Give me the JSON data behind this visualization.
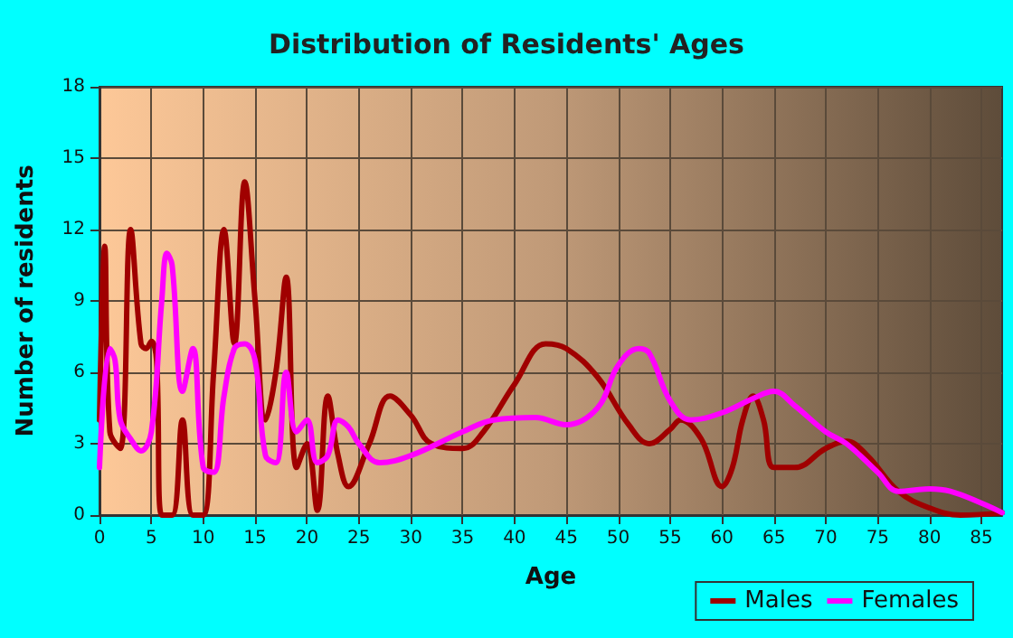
{
  "chart_data": {
    "type": "line",
    "title": "Distribution of Residents' Ages",
    "xlabel": "Age",
    "ylabel": "Number of residents",
    "xlim": [
      0,
      87
    ],
    "xticks": [
      0,
      5,
      10,
      15,
      20,
      25,
      30,
      35,
      40,
      45,
      50,
      55,
      60,
      65,
      70,
      75,
      80,
      85
    ],
    "ylim": [
      0,
      18
    ],
    "yticks": [
      0,
      3,
      6,
      9,
      12,
      15,
      18
    ],
    "grid": true,
    "legend": "bottom right",
    "marker": "none",
    "line_style": "solid",
    "series": [
      {
        "name": "Males",
        "color": "#a00000",
        "x": [
          0,
          0.5,
          1,
          2,
          3,
          4,
          4.5,
          5,
          5.5,
          6,
          7,
          8,
          9,
          10,
          11,
          12,
          13,
          14,
          15,
          16,
          17,
          18,
          19,
          20,
          21,
          22,
          23,
          24,
          26,
          28,
          30,
          32,
          35,
          37,
          40,
          43,
          45,
          48,
          51,
          53,
          55,
          56,
          58,
          60,
          61,
          62,
          63,
          64,
          65,
          67,
          70,
          72,
          74,
          77,
          80,
          83,
          87
        ],
        "values": [
          4,
          11.3,
          3.5,
          2.8,
          12,
          7.2,
          7,
          7.3,
          6.5,
          0,
          0,
          4,
          0,
          0,
          6,
          12,
          7.2,
          14,
          9,
          4,
          6,
          10,
          2,
          3,
          0.2,
          5,
          2.5,
          1.2,
          3,
          5,
          4.2,
          3,
          2.8,
          3.5,
          5.5,
          7.2,
          7,
          5.8,
          3.8,
          3,
          3.6,
          4,
          3.2,
          1.2,
          2,
          4,
          5,
          4,
          2,
          2,
          2.8,
          3.1,
          2.5,
          1,
          0.3,
          0,
          0.1
        ]
      },
      {
        "name": "Females",
        "color": "#ff00ff",
        "x": [
          0,
          1,
          1.5,
          2,
          3,
          4,
          5,
          6,
          6.5,
          7,
          8,
          9,
          10,
          11,
          12,
          13,
          14,
          15,
          16,
          17,
          18,
          19,
          20,
          21,
          22,
          23,
          24,
          25,
          27,
          30,
          35,
          38,
          42,
          45,
          48,
          50,
          52,
          53,
          55,
          57,
          60,
          63,
          65,
          67,
          70,
          72,
          75,
          77,
          80,
          82,
          85,
          87
        ],
        "values": [
          2,
          7,
          6.5,
          4,
          3.2,
          2.7,
          3.5,
          9,
          11,
          10.5,
          5.2,
          7,
          2,
          1.8,
          5,
          7,
          7.2,
          6.5,
          2.5,
          2.2,
          6,
          3.5,
          4,
          2.2,
          2.5,
          4,
          3.7,
          3,
          2.2,
          2.5,
          3.5,
          4,
          4.1,
          3.8,
          4.5,
          6.3,
          7,
          6.8,
          4.8,
          4,
          4.3,
          4.9,
          5.2,
          4.6,
          3.5,
          3,
          1.8,
          1,
          1.1,
          1,
          0.5,
          0.1
        ]
      }
    ]
  }
}
